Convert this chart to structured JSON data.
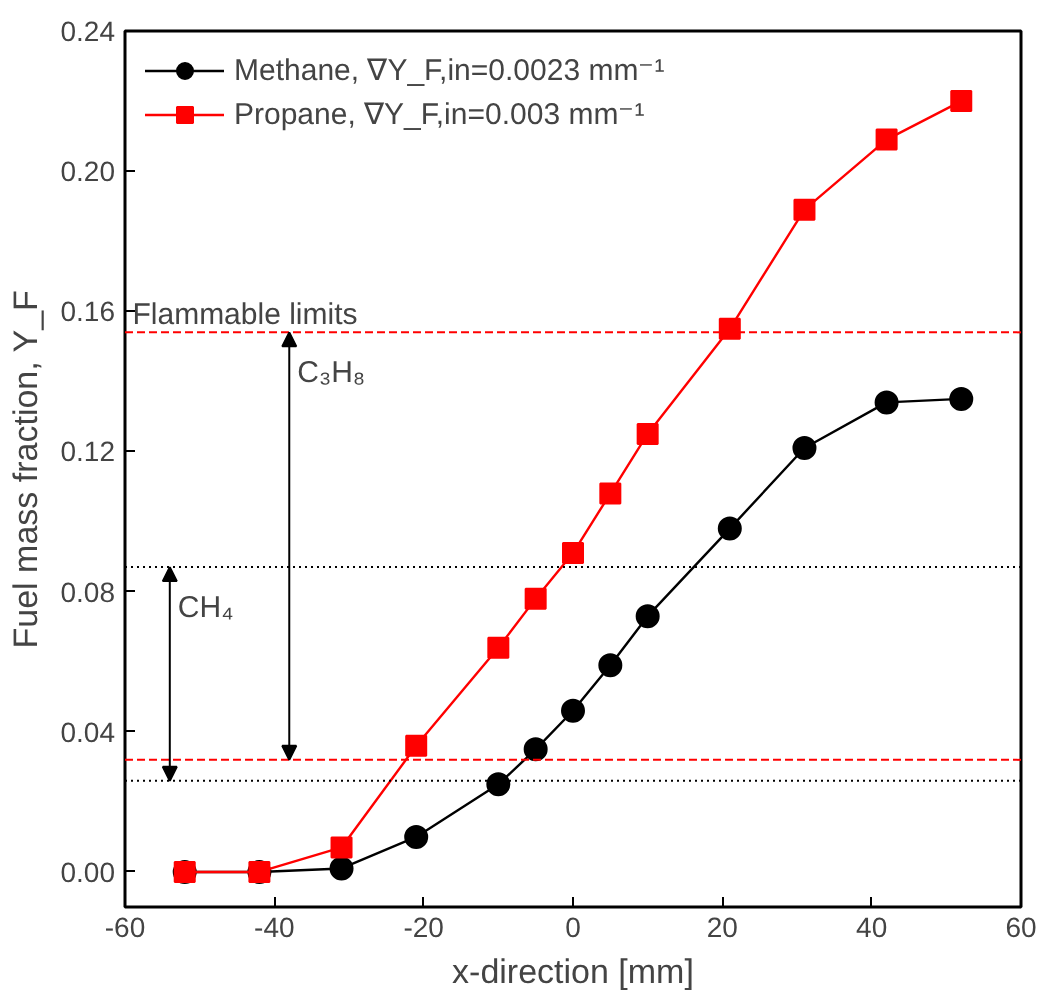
{
  "chart_data": {
    "type": "line",
    "xlabel": "x-direction [mm]",
    "ylabel": "Fuel mass fraction, Y_F",
    "x": [
      -52,
      -42,
      -31,
      -21,
      -10,
      -5,
      0,
      5,
      10,
      21,
      31,
      42,
      52
    ],
    "series": [
      {
        "name": "Methane, ∇Y_F,in=0.0023 mm⁻¹",
        "color": "#000000",
        "marker": "circle",
        "values": [
          0,
          0,
          0.001,
          0.01,
          0.025,
          0.035,
          0.046,
          0.059,
          0.073,
          0.098,
          0.121,
          0.134,
          0.135
        ]
      },
      {
        "name": "Propane, ∇Y_F,in=0.003 mm⁻¹",
        "color": "#ff0000",
        "marker": "square",
        "values": [
          0,
          0,
          0.007,
          0.036,
          0.064,
          0.078,
          0.091,
          0.108,
          0.125,
          0.155,
          0.189,
          0.209,
          0.22
        ]
      }
    ],
    "xlim": [
      -60,
      60
    ],
    "xticks": [
      -60,
      -40,
      -20,
      0,
      20,
      40,
      60
    ],
    "ylim": [
      -0.01,
      0.24
    ],
    "yticks": [
      {
        "value": 0,
        "label": "0.00"
      },
      0.04,
      0.08,
      0.12,
      0.16,
      {
        "value": 0.2,
        "label": "0.20"
      },
      0.24
    ],
    "ref_lines": [
      {
        "axis": "y",
        "value": 0.154,
        "color": "#ff0000",
        "line_style": "dashed"
      },
      {
        "axis": "y",
        "value": 0.032,
        "color": "#ff0000",
        "line_style": "dashed"
      },
      {
        "axis": "y",
        "value": 0.087,
        "color": "#000000",
        "line_style": "dotted"
      },
      {
        "axis": "y",
        "value": 0.026,
        "color": "#000000",
        "line_style": "dotted"
      }
    ],
    "annotations": [
      {
        "text": "Flammable limits",
        "x": -59,
        "y": 0.154
      },
      "C₃H₈",
      "CH₄"
    ],
    "grid": false,
    "legend": "top left",
    "line_style": "solid"
  }
}
